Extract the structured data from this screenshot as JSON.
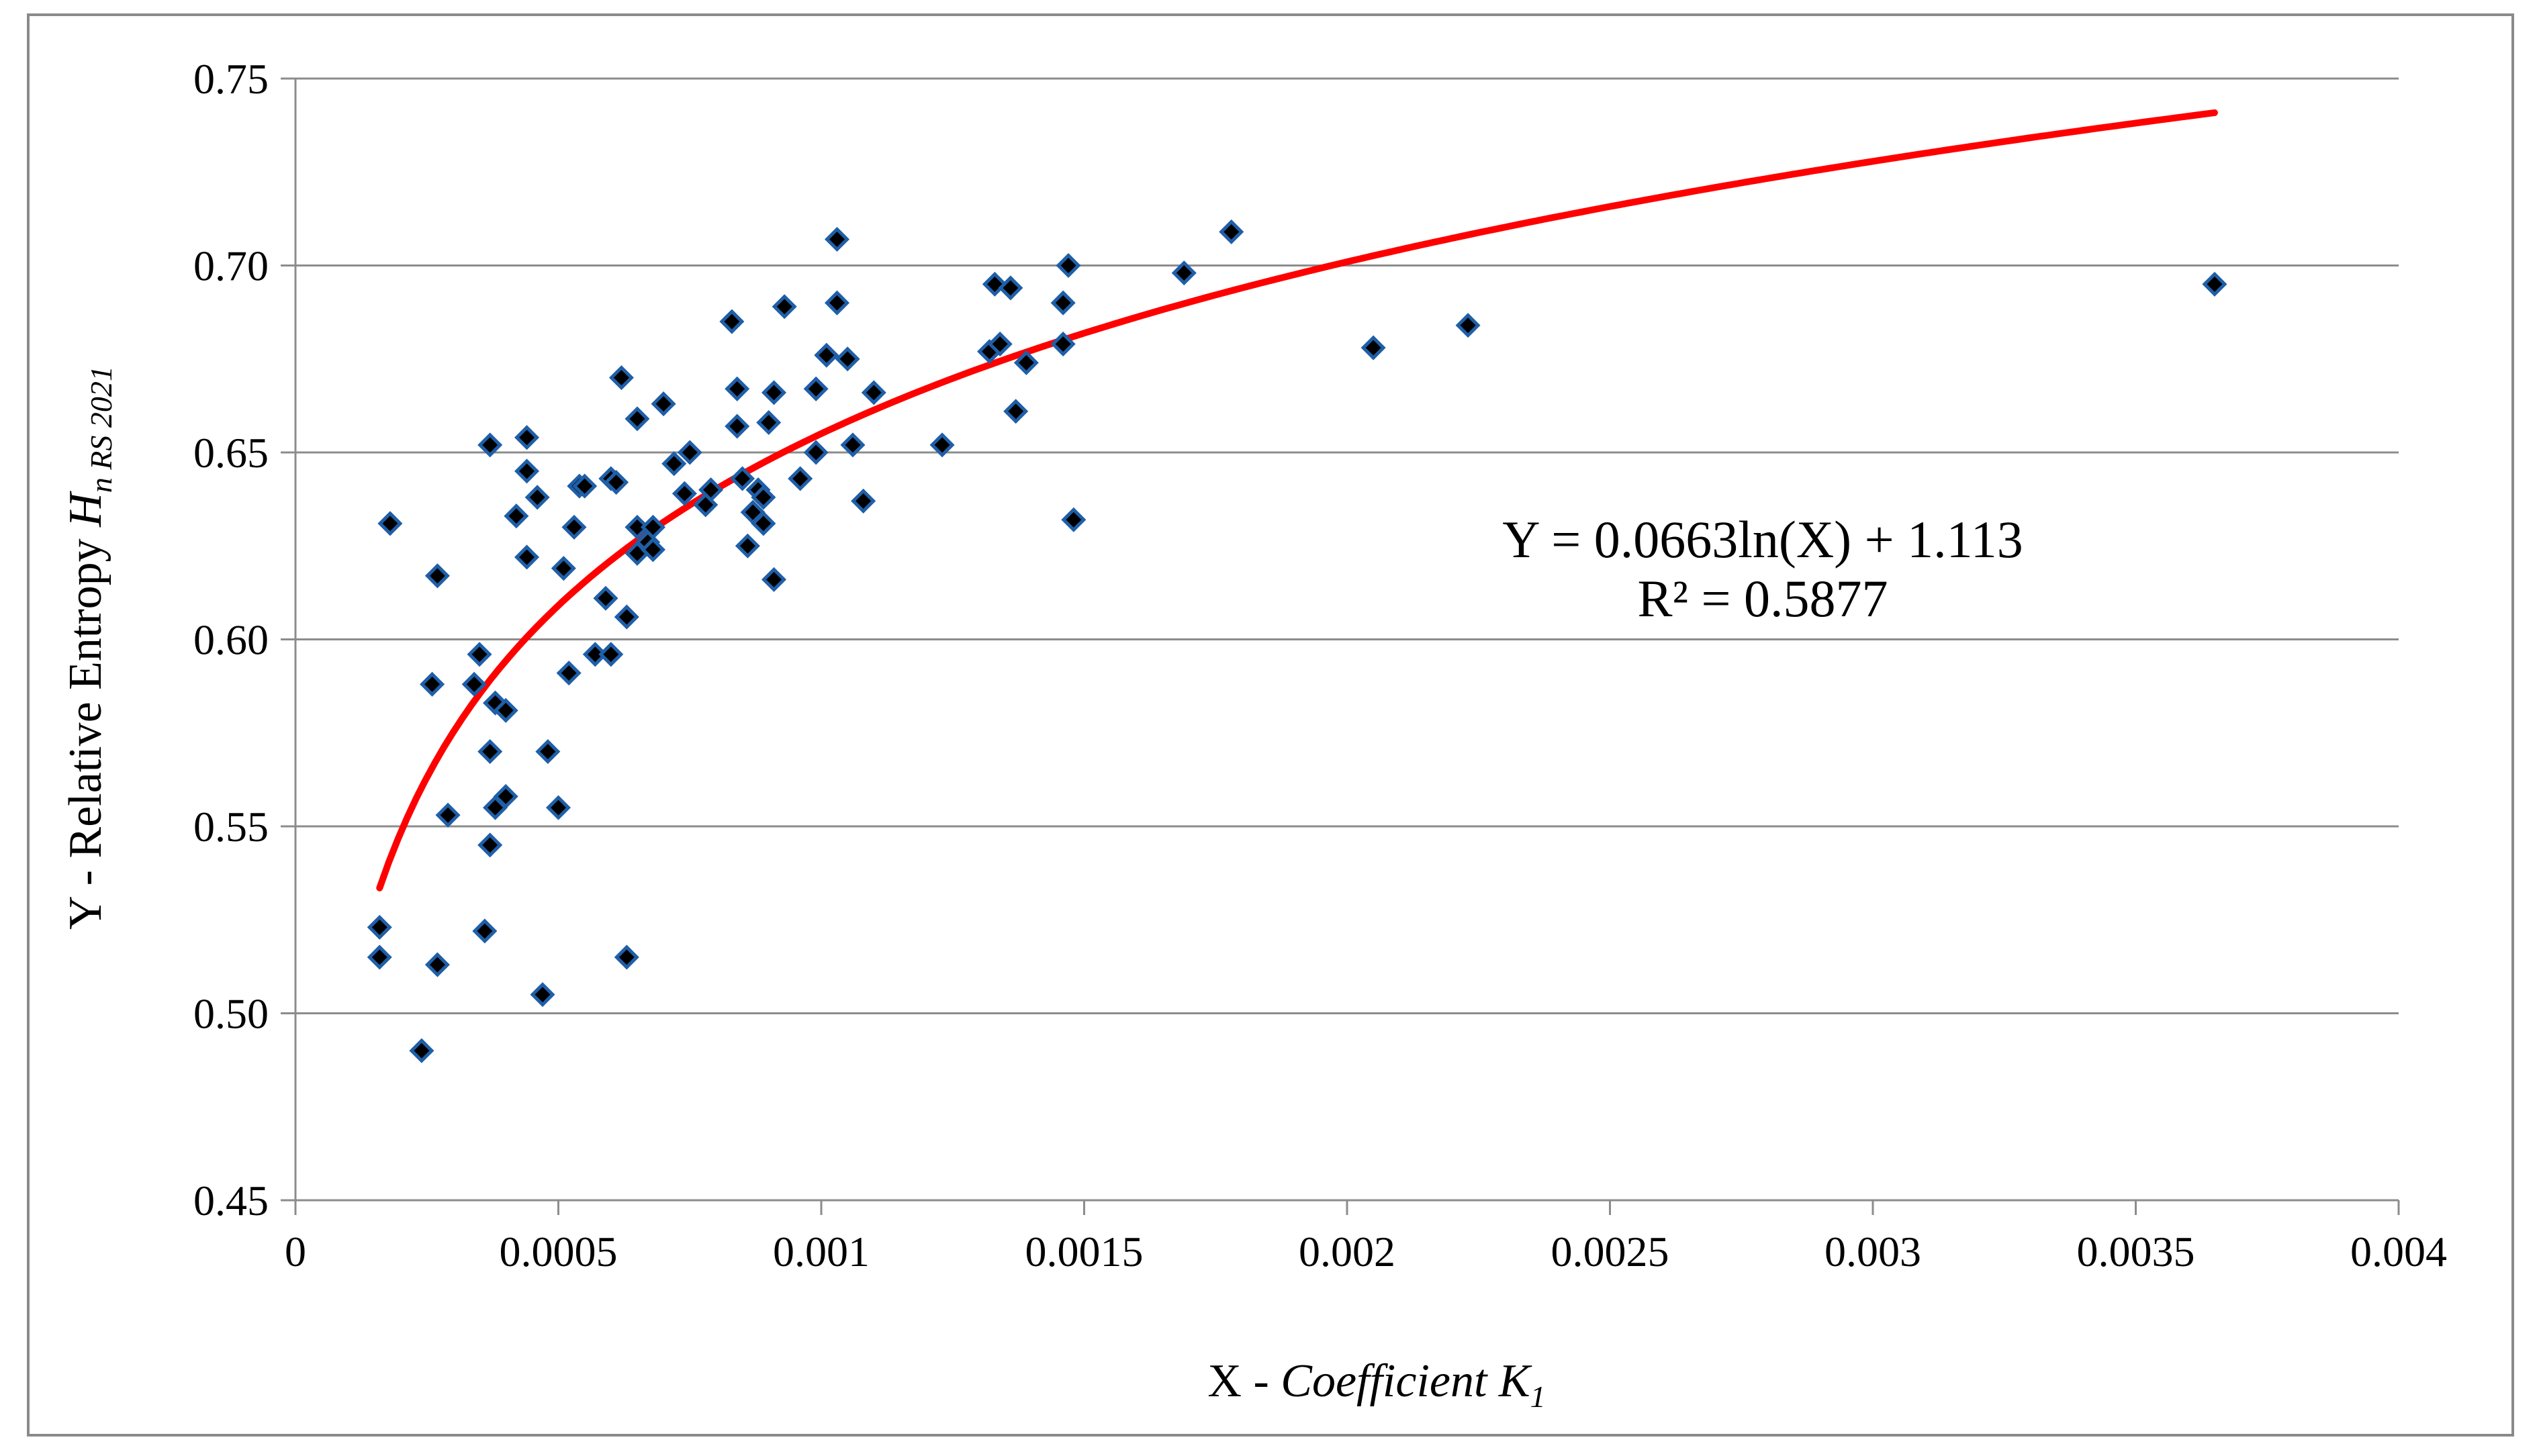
{
  "chart_data": {
    "type": "scatter",
    "xlabel": {
      "prefix": "X - ",
      "italic": "Coefficient K",
      "subscript": "1"
    },
    "ylabel": {
      "prefix": "Y - Relative Entropy ",
      "italic": "H",
      "subscript": "n RS 2021"
    },
    "xlim": [
      0,
      0.004
    ],
    "ylim": [
      0.45,
      0.75
    ],
    "x_ticks": [
      {
        "value": 0,
        "label": "0"
      },
      {
        "value": 0.0005,
        "label": "0.0005"
      },
      {
        "value": 0.001,
        "label": "0.001"
      },
      {
        "value": 0.0015,
        "label": "0.0015"
      },
      {
        "value": 0.002,
        "label": "0.002"
      },
      {
        "value": 0.0025,
        "label": "0.0025"
      },
      {
        "value": 0.003,
        "label": "0.003"
      },
      {
        "value": 0.0035,
        "label": "0.0035"
      },
      {
        "value": 0.004,
        "label": "0.004"
      }
    ],
    "y_ticks": [
      {
        "value": 0.45,
        "label": "0.45"
      },
      {
        "value": 0.5,
        "label": "0.50"
      },
      {
        "value": 0.55,
        "label": "0.55"
      },
      {
        "value": 0.6,
        "label": "0.60"
      },
      {
        "value": 0.65,
        "label": "0.65"
      },
      {
        "value": 0.7,
        "label": "0.70"
      },
      {
        "value": 0.75,
        "label": "0.75"
      }
    ],
    "grid": "horizontal",
    "marker_color": "#1f5fa8",
    "trendline": {
      "type": "logarithmic",
      "a": 0.0663,
      "b": 1.113,
      "x_range": [
        0.00016,
        0.00365
      ],
      "color": "#ff0000",
      "equation_label": "Y = 0.0663ln(X) + 1.113",
      "r2_label": "R² = 0.5877"
    },
    "points": [
      [
        0.00016,
        0.523
      ],
      [
        0.00016,
        0.515
      ],
      [
        0.00018,
        0.631
      ],
      [
        0.00024,
        0.49
      ],
      [
        0.00026,
        0.588
      ],
      [
        0.00027,
        0.617
      ],
      [
        0.00027,
        0.513
      ],
      [
        0.00029,
        0.553
      ],
      [
        0.00034,
        0.588
      ],
      [
        0.00035,
        0.596
      ],
      [
        0.00036,
        0.522
      ],
      [
        0.00037,
        0.652
      ],
      [
        0.00037,
        0.57
      ],
      [
        0.00037,
        0.545
      ],
      [
        0.00038,
        0.583
      ],
      [
        0.00038,
        0.555
      ],
      [
        0.0004,
        0.581
      ],
      [
        0.0004,
        0.558
      ],
      [
        0.00042,
        0.633
      ],
      [
        0.00044,
        0.654
      ],
      [
        0.00044,
        0.645
      ],
      [
        0.00044,
        0.622
      ],
      [
        0.00046,
        0.638
      ],
      [
        0.00047,
        0.505
      ],
      [
        0.00048,
        0.57
      ],
      [
        0.0005,
        0.555
      ],
      [
        0.00051,
        0.619
      ],
      [
        0.00052,
        0.591
      ],
      [
        0.00053,
        0.63
      ],
      [
        0.00054,
        0.641
      ],
      [
        0.00055,
        0.641
      ],
      [
        0.00057,
        0.596
      ],
      [
        0.00059,
        0.611
      ],
      [
        0.0006,
        0.643
      ],
      [
        0.0006,
        0.596
      ],
      [
        0.00061,
        0.642
      ],
      [
        0.00062,
        0.67
      ],
      [
        0.00063,
        0.606
      ],
      [
        0.00063,
        0.515
      ],
      [
        0.00065,
        0.659
      ],
      [
        0.00065,
        0.63
      ],
      [
        0.00065,
        0.623
      ],
      [
        0.00067,
        0.626
      ],
      [
        0.00068,
        0.63
      ],
      [
        0.00068,
        0.624
      ],
      [
        0.0007,
        0.663
      ],
      [
        0.00072,
        0.647
      ],
      [
        0.00074,
        0.639
      ],
      [
        0.00075,
        0.65
      ],
      [
        0.00078,
        0.636
      ],
      [
        0.00079,
        0.64
      ],
      [
        0.00083,
        0.685
      ],
      [
        0.00084,
        0.667
      ],
      [
        0.00084,
        0.657
      ],
      [
        0.00085,
        0.643
      ],
      [
        0.00086,
        0.625
      ],
      [
        0.00087,
        0.634
      ],
      [
        0.00088,
        0.64
      ],
      [
        0.00089,
        0.631
      ],
      [
        0.00089,
        0.638
      ],
      [
        0.0009,
        0.658
      ],
      [
        0.00091,
        0.666
      ],
      [
        0.00091,
        0.616
      ],
      [
        0.00093,
        0.689
      ],
      [
        0.00096,
        0.643
      ],
      [
        0.00099,
        0.667
      ],
      [
        0.00099,
        0.65
      ],
      [
        0.00101,
        0.676
      ],
      [
        0.00103,
        0.707
      ],
      [
        0.00103,
        0.69
      ],
      [
        0.00105,
        0.675
      ],
      [
        0.00106,
        0.652
      ],
      [
        0.00108,
        0.637
      ],
      [
        0.0011,
        0.666
      ],
      [
        0.00123,
        0.652
      ],
      [
        0.00132,
        0.677
      ],
      [
        0.00133,
        0.695
      ],
      [
        0.00134,
        0.679
      ],
      [
        0.00136,
        0.694
      ],
      [
        0.00137,
        0.661
      ],
      [
        0.00139,
        0.674
      ],
      [
        0.00146,
        0.69
      ],
      [
        0.00146,
        0.679
      ],
      [
        0.00147,
        0.7
      ],
      [
        0.00148,
        0.632
      ],
      [
        0.00169,
        0.698
      ],
      [
        0.00178,
        0.709
      ],
      [
        0.00205,
        0.678
      ],
      [
        0.00223,
        0.684
      ],
      [
        0.00365,
        0.695
      ]
    ]
  }
}
